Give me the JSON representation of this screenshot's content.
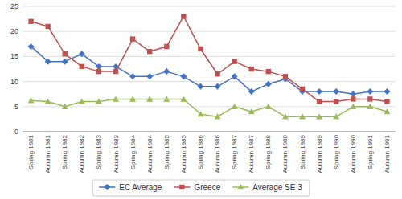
{
  "chart_data": {
    "type": "line",
    "categories": [
      "Spring 1981",
      "Autumn 1981",
      "Spring 1982",
      "Autumn 1982",
      "Spring 1983",
      "Autumn 1983",
      "Spring 1984",
      "Autumn 1984",
      "Spring 1985",
      "Autumn 1985",
      "Spring 1986",
      "Autumn 1986",
      "Spring 1987",
      "Autumn 1987",
      "Spring 1988",
      "Autumn 1988",
      "Spring 1989",
      "Autumn 1989",
      "Spring 1990",
      "Autumn 1990",
      "Spring 1991",
      "Autumn 1991"
    ],
    "series": [
      {
        "name": "EC Average",
        "color": "#4472C4",
        "marker": "diamond",
        "values": [
          17,
          14,
          14,
          15.5,
          13,
          13,
          11,
          11,
          12,
          11,
          9,
          9,
          11,
          8,
          9.5,
          10.5,
          8,
          8,
          8,
          7.5,
          8,
          8
        ]
      },
      {
        "name": "Greece",
        "color": "#C0504D",
        "marker": "square",
        "values": [
          22,
          21,
          15.5,
          13,
          12,
          12,
          18.5,
          16,
          17,
          23,
          16.5,
          11.5,
          14,
          12.5,
          12,
          11,
          8.5,
          6,
          6,
          6.5,
          6.5,
          6
        ]
      },
      {
        "name": "Average SE 3",
        "color": "#9BBB59",
        "marker": "triangle",
        "values": [
          6.2,
          6,
          5,
          6,
          6,
          6.5,
          6.5,
          6.5,
          6.5,
          6.5,
          3.5,
          3,
          5,
          4,
          5,
          3,
          3,
          3,
          3,
          5,
          5,
          4
        ]
      }
    ],
    "ylim": [
      0,
      25
    ],
    "yticks": [
      0,
      5,
      10,
      15,
      20,
      25
    ],
    "grid": true,
    "legend": "bottom"
  }
}
